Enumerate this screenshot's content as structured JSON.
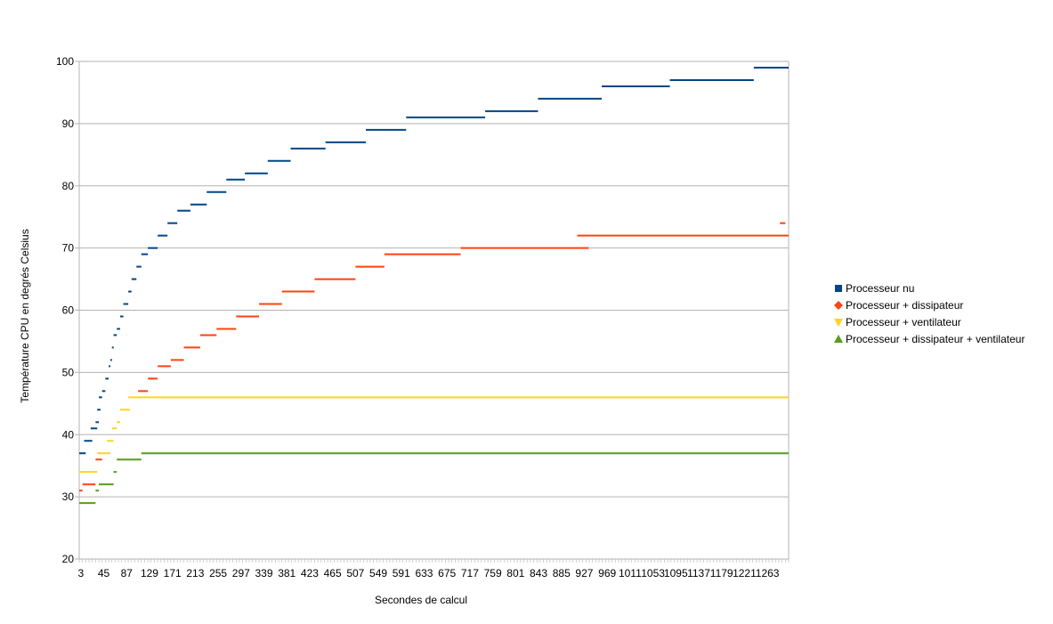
{
  "chart_data": {
    "type": "scatter",
    "title": "",
    "xlabel": "Secondes de calcul",
    "ylabel": "Température CPU en degrés Celsius",
    "ylim": [
      20,
      100
    ],
    "xlim": [
      0,
      1302
    ],
    "yticks": [
      20,
      30,
      40,
      50,
      60,
      70,
      80,
      90,
      100
    ],
    "xtick_labels": [
      "3",
      "45",
      "87",
      "129",
      "171",
      "213",
      "255",
      "297",
      "339",
      "381",
      "423",
      "465",
      "507",
      "549",
      "591",
      "633",
      "675",
      "717",
      "759",
      "801",
      "843",
      "885",
      "927",
      "969",
      "1011",
      "1053",
      "1095",
      "1137",
      "1179",
      "1221",
      "1263"
    ],
    "grid": true,
    "legend_position": "right",
    "series": [
      {
        "name": "Processeur nu",
        "color": "#004586",
        "marker": "square",
        "segments": [
          [
            0,
            12,
            37
          ],
          [
            9,
            24,
            39
          ],
          [
            21,
            33,
            41
          ],
          [
            30,
            36,
            42
          ],
          [
            33,
            39,
            44
          ],
          [
            36,
            42,
            46
          ],
          [
            42,
            48,
            47
          ],
          [
            48,
            54,
            49
          ],
          [
            54,
            57,
            51
          ],
          [
            57,
            60,
            52
          ],
          [
            60,
            63,
            54
          ],
          [
            63,
            69,
            56
          ],
          [
            69,
            75,
            57
          ],
          [
            75,
            81,
            59
          ],
          [
            81,
            90,
            61
          ],
          [
            90,
            96,
            63
          ],
          [
            96,
            105,
            65
          ],
          [
            105,
            114,
            67
          ],
          [
            114,
            126,
            69
          ],
          [
            126,
            144,
            70
          ],
          [
            144,
            162,
            72
          ],
          [
            162,
            180,
            74
          ],
          [
            180,
            204,
            76
          ],
          [
            204,
            234,
            77
          ],
          [
            234,
            270,
            79
          ],
          [
            270,
            304,
            81
          ],
          [
            304,
            346,
            82
          ],
          [
            346,
            388,
            84
          ],
          [
            388,
            452,
            86
          ],
          [
            452,
            526,
            87
          ],
          [
            526,
            600,
            89
          ],
          [
            600,
            745,
            91
          ],
          [
            745,
            842,
            92
          ],
          [
            842,
            959,
            94
          ],
          [
            959,
            1084,
            96
          ],
          [
            1084,
            1238,
            97
          ],
          [
            1238,
            1302,
            99
          ]
        ]
      },
      {
        "name": "Processeur + dissipateur",
        "color": "#ff420e",
        "marker": "diamond",
        "segments": [
          [
            0,
            6,
            31
          ],
          [
            6,
            30,
            32
          ],
          [
            30,
            42,
            36
          ],
          [
            108,
            126,
            47
          ],
          [
            126,
            144,
            49
          ],
          [
            144,
            168,
            51
          ],
          [
            168,
            192,
            52
          ],
          [
            192,
            222,
            54
          ],
          [
            222,
            252,
            56
          ],
          [
            252,
            288,
            57
          ],
          [
            288,
            330,
            59
          ],
          [
            330,
            372,
            61
          ],
          [
            372,
            432,
            63
          ],
          [
            432,
            507,
            65
          ],
          [
            507,
            560,
            67
          ],
          [
            560,
            700,
            69
          ],
          [
            700,
            935,
            70
          ],
          [
            914,
            1302,
            72
          ],
          [
            1286,
            1296,
            74
          ]
        ]
      },
      {
        "name": "Processeur + ventilateur",
        "color": "#ffd320",
        "marker": "triangle-down",
        "segments": [
          [
            0,
            33,
            34
          ],
          [
            33,
            42,
            37
          ],
          [
            42,
            57,
            37
          ],
          [
            51,
            63,
            39
          ],
          [
            60,
            69,
            41
          ],
          [
            69,
            75,
            42
          ],
          [
            75,
            93,
            44
          ],
          [
            90,
            1302,
            46
          ]
        ]
      },
      {
        "name": "Processeur + dissipateur + ventilateur",
        "color": "#579d1c",
        "marker": "triangle-up",
        "segments": [
          [
            0,
            30,
            29
          ],
          [
            30,
            36,
            31
          ],
          [
            36,
            63,
            32
          ],
          [
            63,
            69,
            34
          ],
          [
            69,
            114,
            36
          ],
          [
            114,
            1302,
            37
          ]
        ]
      }
    ]
  }
}
